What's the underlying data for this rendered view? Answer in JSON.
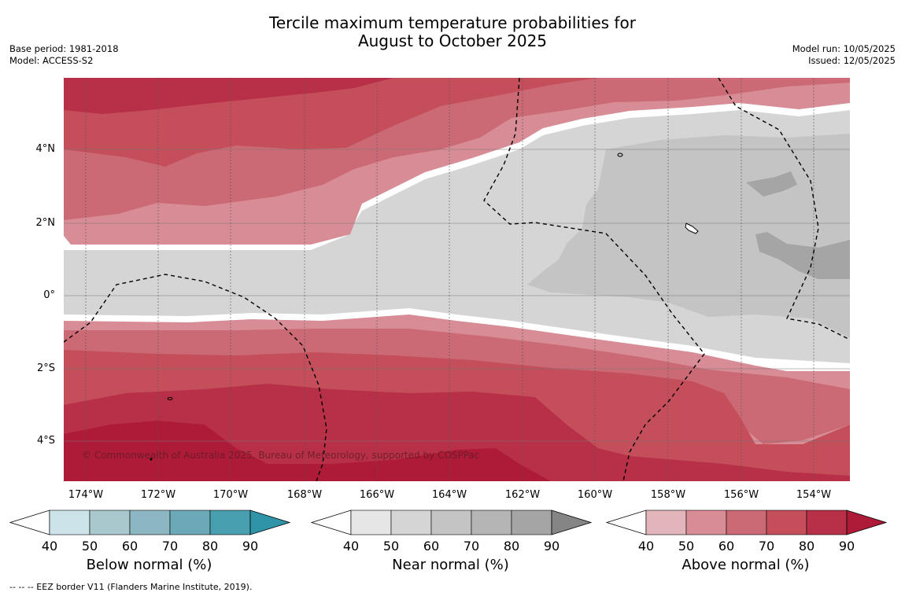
{
  "title_line1": "Tercile maximum temperature probabilities for",
  "title_line2": "August to October 2025",
  "base_period": "Base period: 1981-2018",
  "model": "Model: ACCESS-S2",
  "model_run": "Model run: 10/05/2025",
  "issued": "Issued: 12/05/2025",
  "copyright": "© Commonwealth of Australia 2025, Bureau of Meteorology, supported by COSPPac",
  "footer": "--  --  -- EEZ border V11 (Flanders Marine Institute, 2019).",
  "lat_labels": [
    "4°N",
    "2°N",
    "0°",
    "2°S",
    "4°S"
  ],
  "lon_labels": [
    "174°W",
    "172°W",
    "170°W",
    "168°W",
    "166°W",
    "164°W",
    "162°W",
    "160°W",
    "158°W",
    "156°W",
    "154°W"
  ],
  "colorbars": [
    {
      "label": "Below normal (%)",
      "ticks": [
        "40",
        "50",
        "60",
        "70",
        "80",
        "90"
      ],
      "colors": [
        "#cce3ea",
        "#a8c8ce",
        "#8bb6c2",
        "#6ba9b9",
        "#479fb0",
        "#2f94a8"
      ]
    },
    {
      "label": "Near normal (%)",
      "ticks": [
        "40",
        "50",
        "60",
        "70",
        "80",
        "90"
      ],
      "colors": [
        "#e6e6e6",
        "#d5d5d5",
        "#c4c4c4",
        "#b5b5b5",
        "#a5a5a5",
        "#858585"
      ]
    },
    {
      "label": "Above normal (%)",
      "ticks": [
        "40",
        "50",
        "60",
        "70",
        "80",
        "90"
      ],
      "colors": [
        "#e2b5bb",
        "#d88c95",
        "#cb6a75",
        "#c44f5b",
        "#b83048",
        "#ae1b38"
      ]
    }
  ],
  "palette": {
    "near_light": "#d5d5d5",
    "near_mid": "#c4c4c4",
    "near_dark": "#a5a5a5",
    "above_50": "#d88c95",
    "above_60": "#cb6a75",
    "above_70": "#c44f5b",
    "above_80": "#b83048",
    "above_90": "#ae1b38"
  }
}
